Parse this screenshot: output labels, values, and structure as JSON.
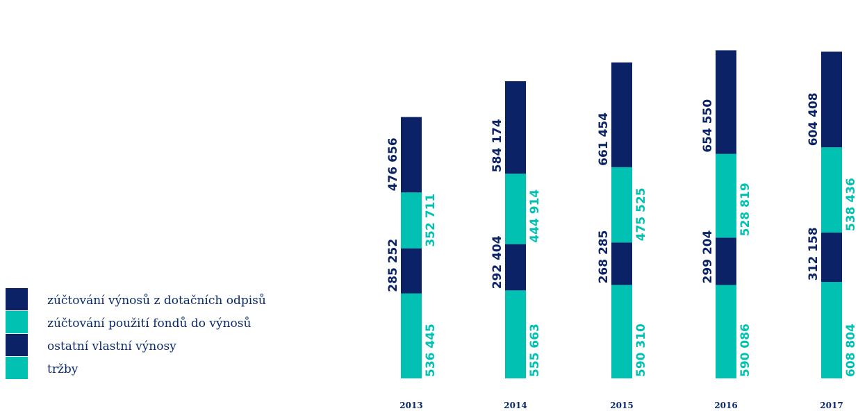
{
  "chart_data": {
    "type": "bar",
    "stacked": true,
    "categories": [
      "2013",
      "2014",
      "2015",
      "2016",
      "2017"
    ],
    "series": [
      {
        "name": "tržby",
        "color": "#00c1b2",
        "values": [
          536445,
          555663,
          590310,
          590086,
          608804
        ]
      },
      {
        "name": "ostatní vlastní výnosy",
        "color": "#0b2366",
        "values": [
          285252,
          292404,
          268285,
          299204,
          312158
        ]
      },
      {
        "name": "zúčtování použití fondů do výnosů",
        "color": "#00c1b2",
        "values": [
          352711,
          444914,
          475525,
          528819,
          538436
        ]
      },
      {
        "name": "zúčtování výnosů z dotačních odpisů",
        "color": "#0b2366",
        "values": [
          476656,
          584174,
          661454,
          654550,
          604408
        ]
      }
    ],
    "value_labels": [
      [
        "536 445",
        "285 252",
        "352 711",
        "476 656"
      ],
      [
        "555 663",
        "292 404",
        "444 914",
        "584 174"
      ],
      [
        "590 310",
        "268 285",
        "475 525",
        "661 454"
      ],
      [
        "590 086",
        "299 204",
        "528 819",
        "654 550"
      ],
      [
        "608 804",
        "312 158",
        "538 436",
        "604 408"
      ]
    ],
    "legend": {
      "placement": "left",
      "order": [
        "zúčtování výnosů z dotačních odpisů",
        "zúčtování použití fondů do výnosů",
        "ostatní vlastní výnosy",
        "tržby"
      ]
    },
    "xlabel": "",
    "ylabel": "",
    "grid": false
  }
}
